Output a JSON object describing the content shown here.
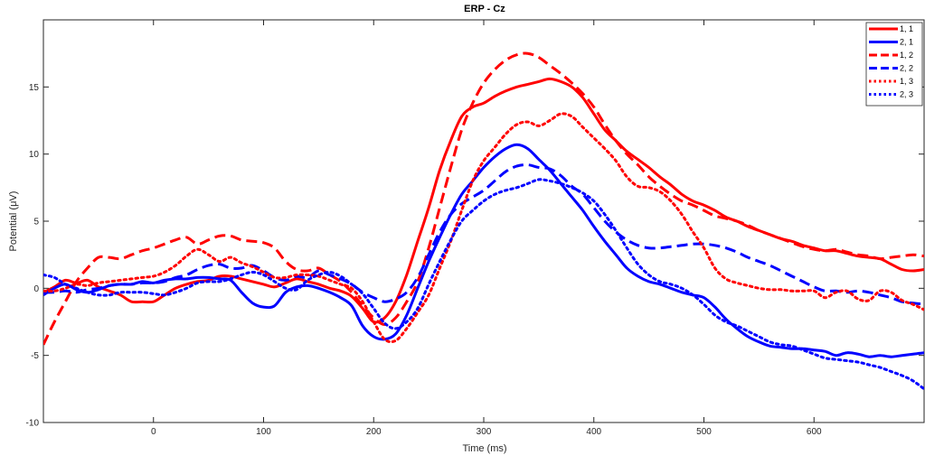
{
  "chart_data": {
    "type": "line",
    "title": "ERP - Cz",
    "xlabel": "Time (ms)",
    "ylabel": "Potential (μV)",
    "xlim": [
      -100,
      700
    ],
    "ylim": [
      -10,
      20
    ],
    "xticks": [
      0,
      100,
      200,
      300,
      400,
      500,
      600
    ],
    "yticks": [
      -10,
      -5,
      0,
      5,
      10,
      15
    ],
    "grid": false,
    "legend_position": "top-right",
    "series": [
      {
        "name": "1, 1",
        "color": "#ff0000",
        "dash": "solid",
        "x": [
          -100,
          -90,
          -80,
          -70,
          -60,
          -50,
          -40,
          -30,
          -20,
          -10,
          0,
          10,
          20,
          30,
          40,
          50,
          60,
          70,
          80,
          90,
          100,
          110,
          120,
          130,
          140,
          150,
          160,
          170,
          180,
          190,
          200,
          210,
          220,
          230,
          240,
          250,
          260,
          270,
          280,
          290,
          300,
          310,
          320,
          330,
          340,
          350,
          360,
          370,
          380,
          390,
          400,
          410,
          420,
          430,
          440,
          450,
          460,
          470,
          480,
          490,
          500,
          510,
          520,
          530,
          540,
          550,
          560,
          570,
          580,
          590,
          600,
          610,
          620,
          630,
          640,
          650,
          660,
          670,
          680,
          690,
          700
        ],
        "y": [
          -0.3,
          0.1,
          0.6,
          0.4,
          0.6,
          0.1,
          -0.2,
          -0.5,
          -1.0,
          -1.0,
          -1.0,
          -0.5,
          0.0,
          0.3,
          0.5,
          0.6,
          0.9,
          0.9,
          0.7,
          0.5,
          0.3,
          0.1,
          0.4,
          0.7,
          0.5,
          0.3,
          0.0,
          -0.2,
          -0.6,
          -1.5,
          -2.5,
          -2.2,
          -1.0,
          1.0,
          3.5,
          6.0,
          8.8,
          11.0,
          12.8,
          13.5,
          13.8,
          14.3,
          14.7,
          15.0,
          15.2,
          15.4,
          15.6,
          15.4,
          15.0,
          14.2,
          13.0,
          11.8,
          11.0,
          10.2,
          9.6,
          9.0,
          8.3,
          7.7,
          7.0,
          6.5,
          6.2,
          5.8,
          5.3,
          5.0,
          4.6,
          4.3,
          4.0,
          3.7,
          3.5,
          3.2,
          3.0,
          2.8,
          2.8,
          2.6,
          2.4,
          2.3,
          2.2,
          1.8,
          1.4,
          1.3,
          1.4
        ]
      },
      {
        "name": "2, 1",
        "color": "#0000ff",
        "dash": "solid",
        "x": [
          -100,
          -90,
          -80,
          -70,
          -60,
          -50,
          -40,
          -30,
          -20,
          -10,
          0,
          10,
          20,
          30,
          40,
          50,
          60,
          70,
          80,
          90,
          100,
          110,
          120,
          130,
          140,
          150,
          160,
          170,
          180,
          190,
          200,
          210,
          220,
          230,
          240,
          250,
          260,
          270,
          280,
          290,
          300,
          310,
          320,
          330,
          340,
          350,
          360,
          370,
          380,
          390,
          400,
          410,
          420,
          430,
          440,
          450,
          460,
          470,
          480,
          490,
          500,
          510,
          520,
          530,
          540,
          550,
          560,
          570,
          580,
          590,
          600,
          610,
          620,
          630,
          640,
          650,
          660,
          670,
          680,
          690,
          700
        ],
        "y": [
          -0.5,
          0.0,
          0.3,
          -0.1,
          -0.3,
          -0.1,
          0.2,
          0.3,
          0.3,
          0.5,
          0.4,
          0.6,
          0.7,
          0.7,
          0.8,
          0.8,
          0.7,
          0.6,
          -0.3,
          -1.1,
          -1.4,
          -1.3,
          -0.3,
          0.1,
          0.2,
          0.0,
          -0.3,
          -0.7,
          -1.3,
          -2.8,
          -3.6,
          -3.8,
          -3.4,
          -2.0,
          0.0,
          2.0,
          3.8,
          5.5,
          7.0,
          8.0,
          9.0,
          9.8,
          10.4,
          10.7,
          10.4,
          9.6,
          8.8,
          7.8,
          6.8,
          5.8,
          4.6,
          3.5,
          2.5,
          1.5,
          0.9,
          0.5,
          0.3,
          0.0,
          -0.3,
          -0.5,
          -0.7,
          -1.4,
          -2.3,
          -3.0,
          -3.6,
          -4.0,
          -4.3,
          -4.4,
          -4.5,
          -4.5,
          -4.6,
          -4.7,
          -5.0,
          -4.8,
          -4.9,
          -5.1,
          -5.0,
          -5.1,
          -5.0,
          -4.9,
          -4.8
        ]
      },
      {
        "name": "1, 2",
        "color": "#ff0000",
        "dash": "dashed",
        "x": [
          -100,
          -90,
          -80,
          -70,
          -60,
          -50,
          -40,
          -30,
          -20,
          -10,
          0,
          10,
          20,
          30,
          40,
          50,
          60,
          70,
          80,
          90,
          100,
          110,
          120,
          130,
          140,
          150,
          160,
          170,
          180,
          190,
          200,
          210,
          220,
          230,
          240,
          250,
          260,
          270,
          280,
          290,
          300,
          310,
          320,
          330,
          340,
          350,
          360,
          370,
          380,
          390,
          400,
          410,
          420,
          430,
          440,
          450,
          460,
          470,
          480,
          490,
          500,
          510,
          520,
          530,
          540,
          550,
          560,
          570,
          580,
          590,
          600,
          610,
          620,
          630,
          640,
          650,
          660,
          670,
          680,
          690,
          700
        ],
        "y": [
          -4.2,
          -2.5,
          -1.0,
          0.5,
          1.5,
          2.3,
          2.3,
          2.2,
          2.5,
          2.8,
          3.0,
          3.3,
          3.6,
          3.8,
          3.3,
          3.6,
          3.9,
          3.9,
          3.6,
          3.5,
          3.4,
          3.0,
          2.0,
          1.4,
          1.3,
          1.5,
          1.0,
          0.5,
          -0.3,
          -1.3,
          -2.2,
          -2.7,
          -2.2,
          -1.0,
          0.5,
          3.0,
          6.0,
          9.0,
          11.8,
          13.8,
          15.3,
          16.3,
          17.0,
          17.4,
          17.5,
          17.2,
          16.6,
          16.0,
          15.3,
          14.5,
          13.5,
          12.2,
          11.0,
          10.0,
          9.2,
          8.3,
          7.6,
          7.0,
          6.5,
          6.2,
          5.8,
          5.4,
          5.2,
          5.0,
          4.7,
          4.3,
          4.0,
          3.7,
          3.4,
          3.1,
          2.9,
          2.8,
          2.9,
          2.7,
          2.5,
          2.4,
          2.2,
          2.3,
          2.4,
          2.5,
          2.4
        ]
      },
      {
        "name": "2, 2",
        "color": "#0000ff",
        "dash": "dashed",
        "x": [
          -100,
          -90,
          -80,
          -70,
          -60,
          -50,
          -40,
          -30,
          -20,
          -10,
          0,
          10,
          20,
          30,
          40,
          50,
          60,
          70,
          80,
          90,
          100,
          110,
          120,
          130,
          140,
          150,
          160,
          170,
          180,
          190,
          200,
          210,
          220,
          230,
          240,
          250,
          260,
          270,
          280,
          290,
          300,
          310,
          320,
          330,
          340,
          350,
          360,
          370,
          380,
          390,
          400,
          410,
          420,
          430,
          440,
          450,
          460,
          470,
          480,
          490,
          500,
          510,
          520,
          530,
          540,
          550,
          560,
          570,
          580,
          590,
          600,
          610,
          620,
          630,
          640,
          650,
          660,
          670,
          680,
          690,
          700
        ],
        "y": [
          -0.3,
          -0.3,
          -0.2,
          -0.3,
          -0.1,
          0.0,
          0.2,
          0.3,
          0.3,
          0.4,
          0.4,
          0.5,
          0.8,
          1.0,
          1.4,
          1.7,
          1.8,
          1.5,
          1.5,
          1.7,
          1.3,
          0.8,
          0.6,
          0.9,
          0.8,
          1.3,
          1.0,
          0.7,
          0.3,
          -0.3,
          -0.7,
          -1.0,
          -0.8,
          -0.3,
          0.8,
          2.5,
          4.2,
          5.5,
          6.3,
          6.8,
          7.3,
          8.0,
          8.7,
          9.1,
          9.2,
          9.0,
          8.9,
          8.4,
          7.6,
          7.0,
          6.0,
          5.0,
          4.2,
          3.6,
          3.2,
          3.0,
          3.0,
          3.1,
          3.2,
          3.3,
          3.3,
          3.2,
          3.0,
          2.7,
          2.3,
          2.0,
          1.7,
          1.3,
          0.9,
          0.5,
          0.1,
          -0.2,
          -0.2,
          -0.3,
          -0.2,
          -0.3,
          -0.5,
          -0.7,
          -1.0,
          -1.1,
          -1.2
        ]
      },
      {
        "name": "1, 3",
        "color": "#ff0000",
        "dash": "dotted",
        "x": [
          -100,
          -90,
          -80,
          -70,
          -60,
          -50,
          -40,
          -30,
          -20,
          -10,
          0,
          10,
          20,
          30,
          40,
          50,
          60,
          70,
          80,
          90,
          100,
          110,
          120,
          130,
          140,
          150,
          160,
          170,
          180,
          190,
          200,
          210,
          220,
          230,
          240,
          250,
          260,
          270,
          280,
          290,
          300,
          310,
          320,
          330,
          340,
          350,
          360,
          370,
          380,
          390,
          400,
          410,
          420,
          430,
          440,
          450,
          460,
          470,
          480,
          490,
          500,
          510,
          520,
          530,
          540,
          550,
          560,
          570,
          580,
          590,
          600,
          610,
          620,
          630,
          640,
          650,
          660,
          670,
          680,
          690,
          700
        ],
        "y": [
          -0.2,
          -0.2,
          0.0,
          0.3,
          0.2,
          0.4,
          0.5,
          0.6,
          0.7,
          0.8,
          0.9,
          1.2,
          1.7,
          2.4,
          2.9,
          2.5,
          2.0,
          2.3,
          1.9,
          1.6,
          1.2,
          0.8,
          0.8,
          1.0,
          1.0,
          0.9,
          0.6,
          0.3,
          0.0,
          -1.0,
          -2.5,
          -3.8,
          -3.9,
          -3.0,
          -1.8,
          -0.5,
          1.5,
          3.5,
          5.8,
          8.0,
          9.5,
          10.5,
          11.5,
          12.2,
          12.4,
          12.1,
          12.5,
          13.0,
          12.8,
          12.0,
          11.2,
          10.4,
          9.5,
          8.3,
          7.6,
          7.5,
          7.2,
          6.5,
          5.5,
          4.2,
          3.0,
          1.5,
          0.7,
          0.4,
          0.2,
          0.0,
          -0.1,
          -0.1,
          -0.2,
          -0.2,
          -0.2,
          -0.7,
          -0.3,
          -0.2,
          -0.8,
          -0.9,
          -0.2,
          -0.3,
          -0.9,
          -1.2,
          -1.6
        ]
      },
      {
        "name": "2, 3",
        "color": "#0000ff",
        "dash": "dotted",
        "x": [
          -100,
          -90,
          -80,
          -70,
          -60,
          -50,
          -40,
          -30,
          -20,
          -10,
          0,
          10,
          20,
          30,
          40,
          50,
          60,
          70,
          80,
          90,
          100,
          110,
          120,
          130,
          140,
          150,
          160,
          170,
          180,
          190,
          200,
          210,
          220,
          230,
          240,
          250,
          260,
          270,
          280,
          290,
          300,
          310,
          320,
          330,
          340,
          350,
          360,
          370,
          380,
          390,
          400,
          410,
          420,
          430,
          440,
          450,
          460,
          470,
          480,
          490,
          500,
          510,
          520,
          530,
          540,
          550,
          560,
          570,
          580,
          590,
          600,
          610,
          620,
          630,
          640,
          650,
          660,
          670,
          680,
          690,
          700
        ],
        "y": [
          1.0,
          0.8,
          0.3,
          0.0,
          -0.3,
          -0.5,
          -0.5,
          -0.3,
          -0.3,
          -0.3,
          -0.4,
          -0.5,
          -0.3,
          0.0,
          0.4,
          0.5,
          0.5,
          0.7,
          1.0,
          1.2,
          1.0,
          0.5,
          0.0,
          -0.1,
          0.6,
          1.0,
          1.2,
          0.9,
          0.3,
          -0.4,
          -1.5,
          -2.6,
          -3.0,
          -2.5,
          -1.5,
          0.3,
          2.0,
          3.6,
          5.0,
          5.8,
          6.5,
          7.0,
          7.3,
          7.5,
          7.8,
          8.1,
          8.0,
          7.8,
          7.5,
          7.1,
          6.5,
          5.5,
          4.3,
          3.0,
          1.8,
          1.0,
          0.5,
          0.3,
          0.0,
          -0.5,
          -1.2,
          -2.0,
          -2.5,
          -2.8,
          -3.2,
          -3.6,
          -4.0,
          -4.2,
          -4.3,
          -4.6,
          -4.9,
          -5.2,
          -5.3,
          -5.4,
          -5.5,
          -5.7,
          -5.9,
          -6.2,
          -6.5,
          -6.9,
          -7.5
        ]
      }
    ]
  }
}
